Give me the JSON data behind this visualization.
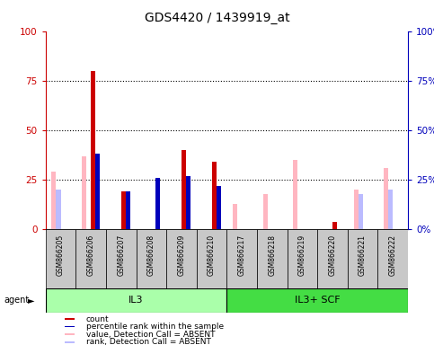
{
  "title": "GDS4420 / 1439919_at",
  "samples": [
    "GSM866205",
    "GSM866206",
    "GSM866207",
    "GSM866208",
    "GSM866209",
    "GSM866210",
    "GSM866217",
    "GSM866218",
    "GSM866219",
    "GSM866220",
    "GSM866221",
    "GSM866222"
  ],
  "count": [
    null,
    80,
    19,
    null,
    40,
    34,
    null,
    null,
    null,
    4,
    null,
    null
  ],
  "percentile_rank": [
    null,
    38,
    19,
    26,
    27,
    22,
    null,
    null,
    null,
    null,
    null,
    null
  ],
  "value_absent": [
    29,
    37,
    null,
    null,
    null,
    null,
    13,
    18,
    35,
    null,
    20,
    31
  ],
  "rank_absent": [
    20,
    null,
    null,
    null,
    null,
    null,
    null,
    null,
    null,
    null,
    18,
    20
  ],
  "yticks": [
    0,
    25,
    50,
    75,
    100
  ],
  "left_axis_color": "#CC0000",
  "right_axis_color": "#0000BB",
  "bar_width": 0.15,
  "colors": {
    "count": "#CC0000",
    "percentile_rank": "#0000BB",
    "value_absent": "#FFB6C1",
    "rank_absent": "#BBBBFF"
  },
  "group_il3_color": "#AAFFAA",
  "group_il3scf_color": "#44DD44",
  "legend_items": [
    {
      "label": "count",
      "color": "#CC0000"
    },
    {
      "label": "percentile rank within the sample",
      "color": "#0000BB"
    },
    {
      "label": "value, Detection Call = ABSENT",
      "color": "#FFB6C1"
    },
    {
      "label": "rank, Detection Call = ABSENT",
      "color": "#BBBBFF"
    }
  ]
}
